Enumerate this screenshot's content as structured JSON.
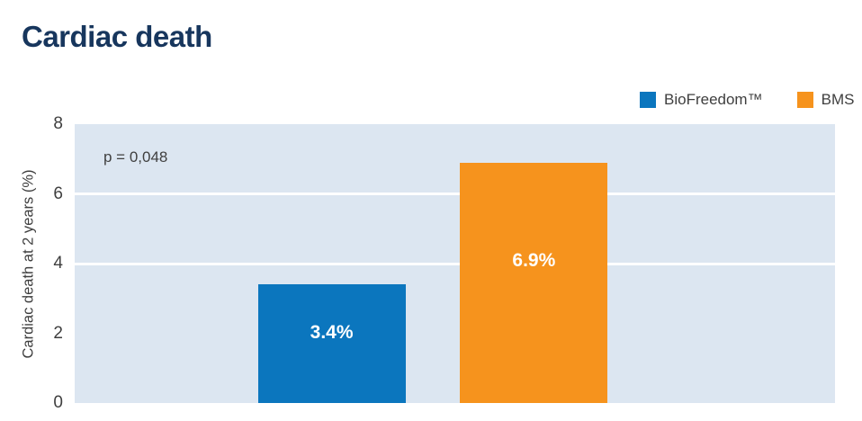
{
  "chart_data": {
    "type": "bar",
    "title": "Cardiac death",
    "ylabel": "Cardiac death at 2 years (%)",
    "ylim": [
      0,
      8
    ],
    "yticks": [
      0,
      2,
      4,
      6,
      8
    ],
    "gridlines": [
      4,
      6
    ],
    "grid_on": true,
    "grid_color": "#ffffff",
    "plot_background": "#dce6f1",
    "title_color": "#17365d",
    "legend_position": "top-right",
    "annotation": "p = 0,048",
    "categories": [
      "BioFreedom™",
      "BMS"
    ],
    "series": [
      {
        "name": "BioFreedom™",
        "value": 3.4,
        "label": "3.4%",
        "color": "#0b76be"
      },
      {
        "name": "BMS",
        "value": 6.9,
        "label": "6.9%",
        "color": "#f6931d"
      }
    ]
  }
}
